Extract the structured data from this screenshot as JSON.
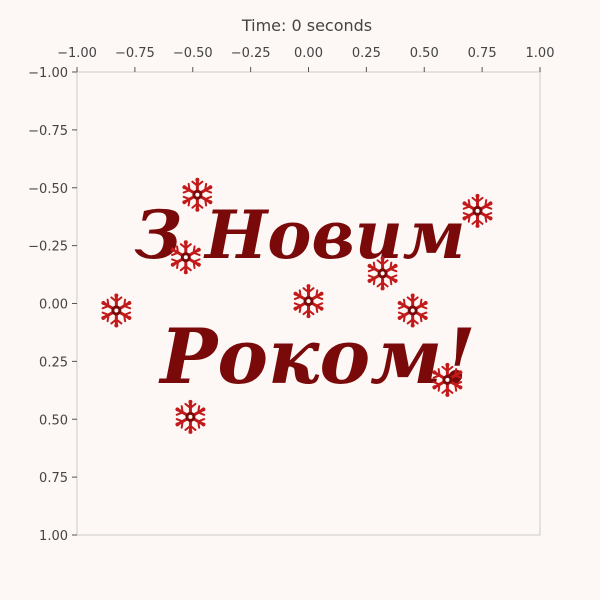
{
  "chart_data": {
    "type": "scatter",
    "title": "Time: 0 seconds",
    "xlabel": "",
    "ylabel": "",
    "xlim": [
      -1.0,
      1.0
    ],
    "ylim": [
      -1.0,
      1.0
    ],
    "y_inverted": true,
    "x_axis_position": "top",
    "grid": false,
    "x_ticks": [
      -1.0,
      -0.75,
      -0.5,
      -0.25,
      0.0,
      0.25,
      0.5,
      0.75,
      1.0
    ],
    "x_tick_labels": [
      "−1.00",
      "−0.75",
      "−0.50",
      "−0.25",
      "0.00",
      "0.25",
      "0.50",
      "0.75",
      "1.00"
    ],
    "y_ticks": [
      -1.0,
      -0.75,
      -0.5,
      -0.25,
      0.0,
      0.25,
      0.5,
      0.75,
      1.0
    ],
    "y_tick_labels": [
      "−1.00",
      "−0.75",
      "−0.50",
      "−0.25",
      "0.00",
      "0.25",
      "0.50",
      "0.75",
      "1.00"
    ],
    "image": {
      "greeting_lines": [
        "З Новим",
        "Роком!"
      ],
      "text_color": "#7a0a0a",
      "snowflake_color": "#c21a1a",
      "snowflakes": [
        {
          "x": -0.48,
          "y": -0.47
        },
        {
          "x": -0.53,
          "y": -0.2
        },
        {
          "x": -0.83,
          "y": 0.03
        },
        {
          "x": 0.0,
          "y": -0.01
        },
        {
          "x": 0.32,
          "y": -0.13
        },
        {
          "x": 0.45,
          "y": 0.03
        },
        {
          "x": 0.73,
          "y": -0.4
        },
        {
          "x": -0.51,
          "y": 0.49
        },
        {
          "x": 0.6,
          "y": 0.33
        }
      ]
    }
  }
}
